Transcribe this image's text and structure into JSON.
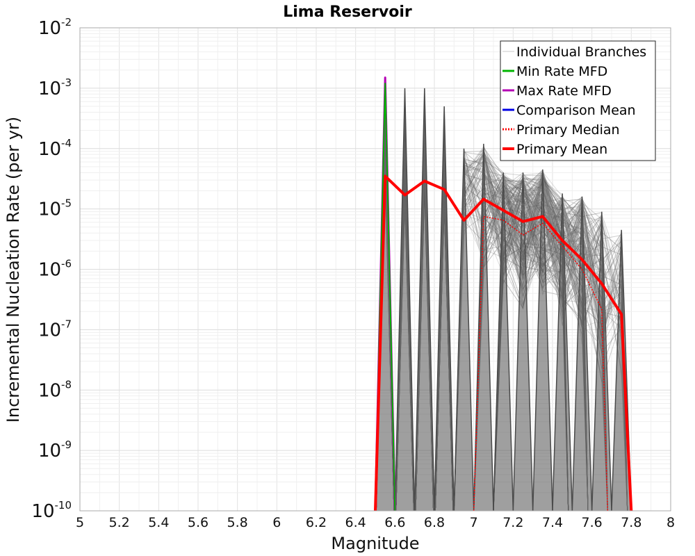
{
  "chart_data": {
    "type": "line",
    "title": "Lima Reservoir",
    "xlabel": "Magnitude",
    "ylabel": "Incremental Nucleation Rate (per yr)",
    "xlim": [
      5,
      8
    ],
    "ylim": [
      1e-10,
      0.01
    ],
    "yscale": "log",
    "grid": true,
    "legend_position": "top-right",
    "x_ticks": [
      "5",
      "5.2",
      "5.4",
      "5.6",
      "5.8",
      "6",
      "6.2",
      "6.4",
      "6.6",
      "6.8",
      "7",
      "7.2",
      "7.4",
      "7.6",
      "7.8",
      "8"
    ],
    "y_ticks": [
      {
        "base": "10",
        "exp": "-10"
      },
      {
        "base": "10",
        "exp": "-9"
      },
      {
        "base": "10",
        "exp": "-8"
      },
      {
        "base": "10",
        "exp": "-7"
      },
      {
        "base": "10",
        "exp": "-6"
      },
      {
        "base": "10",
        "exp": "-5"
      },
      {
        "base": "10",
        "exp": "-4"
      },
      {
        "base": "10",
        "exp": "-3"
      },
      {
        "base": "10",
        "exp": "-2"
      }
    ],
    "legend": [
      {
        "name": "Individual Branches",
        "color": "#c8c8c8",
        "style": "solid"
      },
      {
        "name": "Min Rate MFD",
        "color": "#00b400",
        "style": "solid"
      },
      {
        "name": "Max Rate MFD",
        "color": "#b400b4",
        "style": "solid"
      },
      {
        "name": "Comparison Mean",
        "color": "#0000e6",
        "style": "solid"
      },
      {
        "name": " Primary Median",
        "color": "#ff0000",
        "style": "dotted"
      },
      {
        "name": "Primary Mean",
        "color": "#ff0000",
        "style": "solid"
      }
    ],
    "series": [
      {
        "name": "Max Rate MFD",
        "color": "#b400b4",
        "x": [
          6.5,
          6.55,
          6.6
        ],
        "y": [
          1e-10,
          0.0015,
          1e-10
        ]
      },
      {
        "name": "Min Rate MFD",
        "color": "#00b400",
        "x": [
          6.5,
          6.55,
          6.6
        ],
        "y": [
          1e-10,
          0.0012,
          1e-10
        ]
      },
      {
        "name": "Primary Median",
        "color": "#ff0000",
        "x": [
          7.0,
          7.05,
          7.15,
          7.25,
          7.35,
          7.45,
          7.55,
          7.65,
          7.68
        ],
        "y": [
          1e-10,
          7.5e-06,
          6.5e-06,
          3.7e-06,
          5.8e-06,
          2.4e-06,
          1e-06,
          2.2e-07,
          1e-10
        ]
      },
      {
        "name": "Primary Mean",
        "color": "#ff0000",
        "x": [
          6.5,
          6.55,
          6.65,
          6.75,
          6.85,
          6.95,
          7.05,
          7.15,
          7.25,
          7.35,
          7.45,
          7.55,
          7.65,
          7.75,
          7.8
        ],
        "y": [
          1e-10,
          3.5e-05,
          1.7e-05,
          2.9e-05,
          2.1e-05,
          6.5e-06,
          1.45e-05,
          9.5e-06,
          6.2e-06,
          7.5e-06,
          3e-06,
          1.45e-06,
          5.8e-07,
          1.8e-07,
          1e-10
        ]
      }
    ],
    "branch_peaks": {
      "x": [
        6.55,
        6.65,
        6.75,
        6.85,
        6.95,
        7.05,
        7.15,
        7.25,
        7.35,
        7.45,
        7.55,
        7.65,
        7.75
      ],
      "y_max": [
        0.0013,
        0.001,
        0.001,
        0.0005,
        0.0001,
        0.00012,
        4e-05,
        4e-05,
        4.5e-05,
        1.8e-05,
        1.6e-05,
        9e-06,
        4.5e-06
      ],
      "y_min": [
        3e-05,
        1e-05,
        1.8e-05,
        1e-05,
        3e-06,
        6e-07,
        5e-07,
        2e-07,
        3e-07,
        1e-07,
        5e-08,
        1e-08,
        1e-08
      ]
    }
  }
}
